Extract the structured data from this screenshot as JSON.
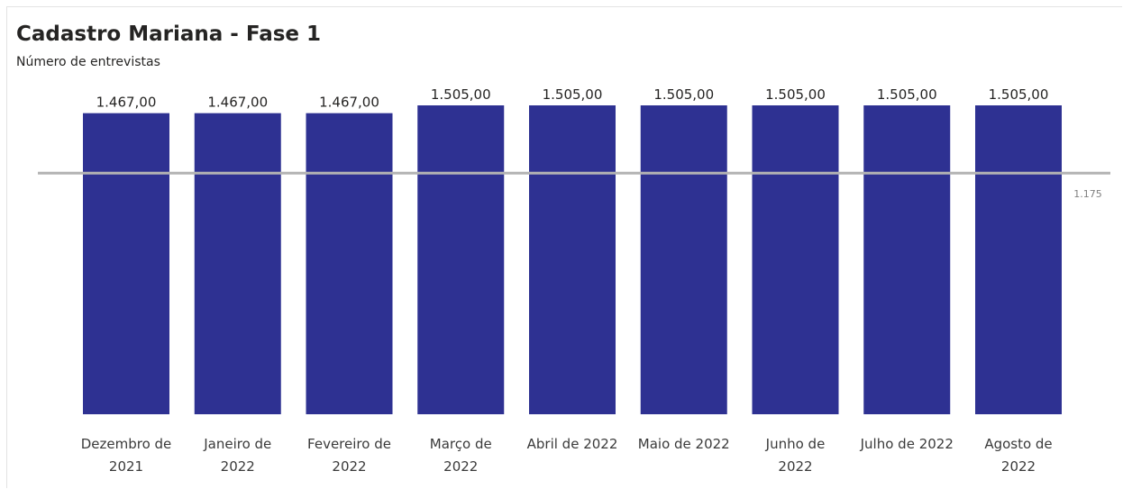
{
  "chart_data": {
    "type": "bar",
    "title": "Cadastro Mariana - Fase 1",
    "subtitle": "Número de entrevistas",
    "categories": [
      [
        "Dezembro de",
        "2021"
      ],
      [
        "Janeiro de",
        "2022"
      ],
      [
        "Fevereiro de",
        "2022"
      ],
      [
        "Março de",
        "2022"
      ],
      [
        "Abril de 2022"
      ],
      [
        "Maio de 2022"
      ],
      [
        "Junho de",
        "2022"
      ],
      [
        "Julho de 2022"
      ],
      [
        "Agosto de",
        "2022"
      ]
    ],
    "values": [
      1467,
      1467,
      1467,
      1505,
      1505,
      1505,
      1505,
      1505,
      1505
    ],
    "value_labels": [
      "1.467,00",
      "1.467,00",
      "1.467,00",
      "1.505,00",
      "1.505,00",
      "1.505,00",
      "1.505,00",
      "1.505,00",
      "1.505,00"
    ],
    "reference_line": {
      "value": 1175,
      "label": "1.175"
    },
    "ylim": [
      0,
      1505
    ],
    "grid": false,
    "legend": "none",
    "colors": {
      "bar": "#2e3192",
      "reference_line": "#b3b3b3",
      "text": "#252423",
      "reference_label": "#7f7f7f"
    }
  }
}
